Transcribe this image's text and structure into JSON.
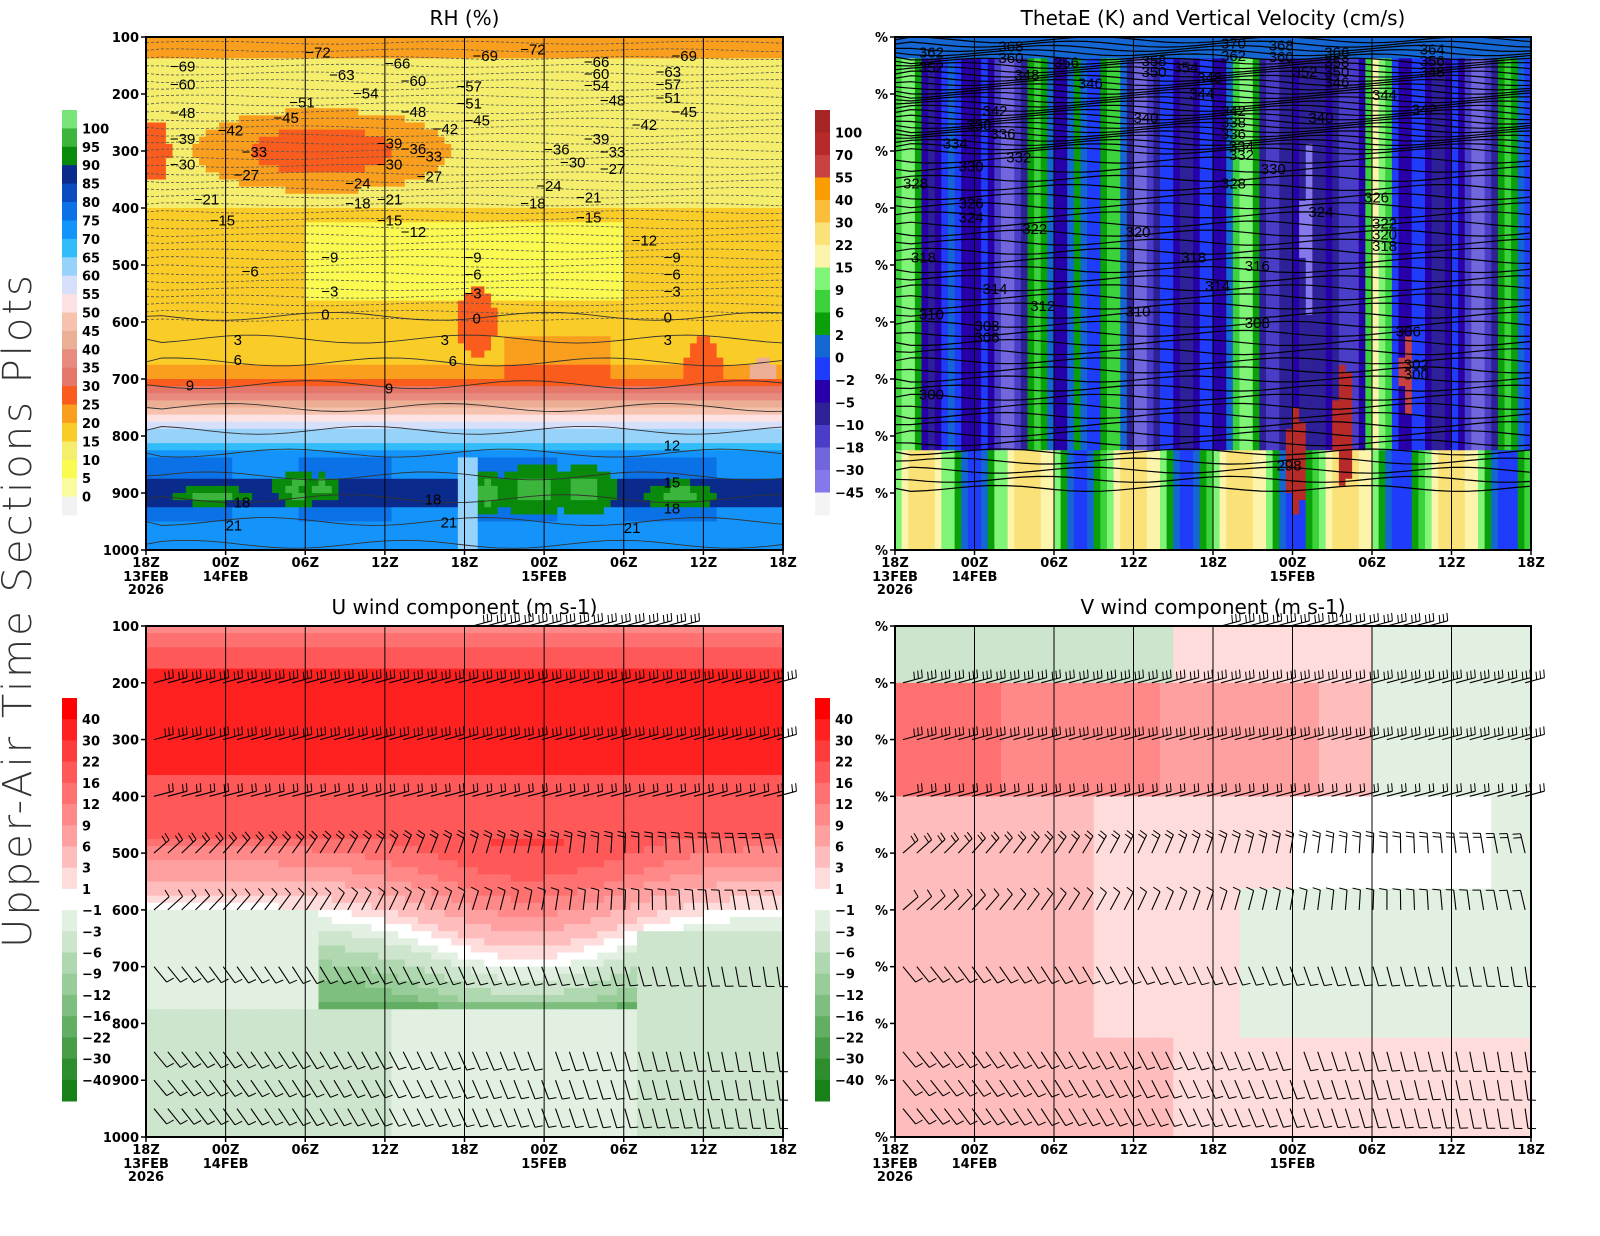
{
  "figure": {
    "side_title": "Upper-Air Time Sections Plots",
    "time_ticks": [
      "18Z",
      "00Z",
      "06Z",
      "12Z",
      "18Z",
      "00Z",
      "06Z",
      "12Z",
      "18Z"
    ],
    "date_labels": [
      {
        "tick_index": 0,
        "lines": [
          "13FEB",
          "2026"
        ]
      },
      {
        "tick_index": 1,
        "lines": [
          "14FEB"
        ]
      },
      {
        "tick_index": 5,
        "lines": [
          "15FEB"
        ]
      }
    ],
    "colors": {
      "grid": "#000000",
      "text": "#000000"
    }
  },
  "chart_data": [
    {
      "id": "rh",
      "type": "heatmap",
      "title": "RH (%)",
      "xlabel": "",
      "ylabel": "",
      "y_ticks": [
        "100",
        "200",
        "300",
        "400",
        "500",
        "600",
        "700",
        "800",
        "900",
        "1000"
      ],
      "ylim": [
        100,
        1000
      ],
      "colorbar": {
        "labels": [
          "100",
          "95",
          "90",
          "85",
          "80",
          "75",
          "70",
          "65",
          "60",
          "55",
          "50",
          "45",
          "40",
          "35",
          "30",
          "25",
          "20",
          "15",
          "10",
          "5",
          "0"
        ],
        "colors": [
          "#78e47a",
          "#3cb53c",
          "#0a8a0a",
          "#0a2a8c",
          "#0a4cbf",
          "#0a72e6",
          "#1494fa",
          "#32bcfa",
          "#96d2fa",
          "#d6e0fa",
          "#fce2e2",
          "#f6c2ae",
          "#ecae94",
          "#e88a7e",
          "#e4766a",
          "#fa5c1e",
          "#fa9e1e",
          "#facc28",
          "#f4ee6c",
          "#fafa50",
          "#fafa9e",
          "#f2f2f2"
        ]
      },
      "contour_labels": [
        {
          "text": "-69",
          "t": 0.3,
          "p": 150
        },
        {
          "text": "-60",
          "t": 0.3,
          "p": 182
        },
        {
          "text": "-48",
          "t": 0.3,
          "p": 232
        },
        {
          "text": "-39",
          "t": 0.3,
          "p": 277
        },
        {
          "text": "-30",
          "t": 0.3,
          "p": 322
        },
        {
          "text": "-21",
          "t": 0.6,
          "p": 383
        },
        {
          "text": "-15",
          "t": 0.8,
          "p": 420
        },
        {
          "text": "-42",
          "t": 0.9,
          "p": 262
        },
        {
          "text": "-33",
          "t": 1.2,
          "p": 300
        },
        {
          "text": "-27",
          "t": 1.1,
          "p": 340
        },
        {
          "text": "-72",
          "t": 2.0,
          "p": 125
        },
        {
          "text": "-63",
          "t": 2.3,
          "p": 165
        },
        {
          "text": "-54",
          "t": 2.6,
          "p": 197
        },
        {
          "text": "-51",
          "t": 1.8,
          "p": 213
        },
        {
          "text": "-45",
          "t": 1.6,
          "p": 240
        },
        {
          "text": "-36",
          "t": 3.2,
          "p": 295
        },
        {
          "text": "-24",
          "t": 2.5,
          "p": 355
        },
        {
          "text": "-18",
          "t": 2.5,
          "p": 390
        },
        {
          "text": "-9",
          "t": 2.2,
          "p": 485
        },
        {
          "text": "-6",
          "t": 1.2,
          "p": 510
        },
        {
          "text": "-3",
          "t": 2.2,
          "p": 545
        },
        {
          "text": "0",
          "t": 2.2,
          "p": 585
        },
        {
          "text": "3",
          "t": 1.1,
          "p": 630
        },
        {
          "text": "6",
          "t": 1.1,
          "p": 665
        },
        {
          "text": "9",
          "t": 0.5,
          "p": 710
        },
        {
          "text": "-66",
          "t": 3.0,
          "p": 145
        },
        {
          "text": "-60",
          "t": 3.2,
          "p": 175
        },
        {
          "text": "-48",
          "t": 3.2,
          "p": 230
        },
        {
          "text": "-42",
          "t": 3.6,
          "p": 260
        },
        {
          "text": "-39",
          "t": 2.9,
          "p": 285
        },
        {
          "text": "-33",
          "t": 3.4,
          "p": 308
        },
        {
          "text": "-30",
          "t": 2.9,
          "p": 322
        },
        {
          "text": "-27",
          "t": 3.4,
          "p": 343
        },
        {
          "text": "-21",
          "t": 2.9,
          "p": 383
        },
        {
          "text": "-15",
          "t": 2.9,
          "p": 420
        },
        {
          "text": "-12",
          "t": 3.2,
          "p": 440
        },
        {
          "text": "9",
          "t": 3.0,
          "p": 715
        },
        {
          "text": "-69",
          "t": 4.1,
          "p": 132
        },
        {
          "text": "-57",
          "t": 3.9,
          "p": 185
        },
        {
          "text": "-51",
          "t": 3.9,
          "p": 215
        },
        {
          "text": "-45",
          "t": 4.0,
          "p": 245
        },
        {
          "text": "-9",
          "t": 4.0,
          "p": 485
        },
        {
          "text": "-6",
          "t": 4.0,
          "p": 515
        },
        {
          "text": "-3",
          "t": 4.0,
          "p": 548
        },
        {
          "text": "0",
          "t": 4.1,
          "p": 592
        },
        {
          "text": "3",
          "t": 3.7,
          "p": 630
        },
        {
          "text": "6",
          "t": 3.8,
          "p": 667
        },
        {
          "text": "-72",
          "t": 4.7,
          "p": 120
        },
        {
          "text": "-36",
          "t": 5.0,
          "p": 296
        },
        {
          "text": "-30",
          "t": 5.2,
          "p": 318
        },
        {
          "text": "-24",
          "t": 4.9,
          "p": 360
        },
        {
          "text": "-18",
          "t": 4.7,
          "p": 390
        },
        {
          "text": "-66",
          "t": 5.5,
          "p": 142
        },
        {
          "text": "-60",
          "t": 5.5,
          "p": 163
        },
        {
          "text": "-54",
          "t": 5.5,
          "p": 183
        },
        {
          "text": "-48",
          "t": 5.7,
          "p": 210
        },
        {
          "text": "-39",
          "t": 5.5,
          "p": 277
        },
        {
          "text": "-33",
          "t": 5.7,
          "p": 300
        },
        {
          "text": "-27",
          "t": 5.7,
          "p": 330
        },
        {
          "text": "-21",
          "t": 5.4,
          "p": 380
        },
        {
          "text": "-15",
          "t": 5.4,
          "p": 415
        },
        {
          "text": "-12",
          "t": 6.1,
          "p": 455
        },
        {
          "text": "-42",
          "t": 6.1,
          "p": 253
        },
        {
          "text": "-69",
          "t": 6.6,
          "p": 132
        },
        {
          "text": "-63",
          "t": 6.4,
          "p": 160
        },
        {
          "text": "-57",
          "t": 6.4,
          "p": 182
        },
        {
          "text": "-51",
          "t": 6.4,
          "p": 205
        },
        {
          "text": "-45",
          "t": 6.6,
          "p": 230
        },
        {
          "text": "-9",
          "t": 6.5,
          "p": 485
        },
        {
          "text": "-6",
          "t": 6.5,
          "p": 515
        },
        {
          "text": "-3",
          "t": 6.5,
          "p": 545
        },
        {
          "text": "0",
          "t": 6.5,
          "p": 590
        },
        {
          "text": "3",
          "t": 6.5,
          "p": 630
        },
        {
          "text": "12",
          "t": 6.5,
          "p": 815
        },
        {
          "text": "15",
          "t": 6.5,
          "p": 880
        },
        {
          "text": "18",
          "t": 6.5,
          "p": 925
        },
        {
          "text": "21",
          "t": 6.0,
          "p": 960
        },
        {
          "text": "18",
          "t": 1.1,
          "p": 915
        },
        {
          "text": "21",
          "t": 1.0,
          "p": 955
        },
        {
          "text": "18",
          "t": 3.5,
          "p": 910
        },
        {
          "text": "21",
          "t": 3.7,
          "p": 950
        }
      ]
    },
    {
      "id": "thetae",
      "type": "heatmap",
      "title": "ThetaE (K) and Vertical Velocity (cm/s)",
      "xlabel": "",
      "ylabel": "",
      "y_ticks": [
        "%",
        "%",
        "%",
        "%",
        "%",
        "%",
        "%",
        "%",
        "%",
        "%"
      ],
      "ylim": [
        100,
        1000
      ],
      "colorbar": {
        "labels": [
          "100",
          "70",
          "55",
          "40",
          "30",
          "22",
          "15",
          "9",
          "6",
          "2",
          "0",
          "-2",
          "-5",
          "-10",
          "-18",
          "-30",
          "-45"
        ],
        "colors": [
          "#a52424",
          "#b82a2a",
          "#c84040",
          "#fa9e00",
          "#fabe3c",
          "#fae178",
          "#fcf4aa",
          "#80f476",
          "#3cd23c",
          "#0aa00a",
          "#1466d2",
          "#1e3cfa",
          "#2800aa",
          "#2e2096",
          "#4a3ec8",
          "#7266dc",
          "#8478ea",
          "#f4f4f4"
        ]
      },
      "contour_labels": [
        {
          "text": "362",
          "t": 0.3,
          "p": 125
        },
        {
          "text": "352",
          "t": 0.3,
          "p": 152
        },
        {
          "text": "368",
          "t": 1.3,
          "p": 115
        },
        {
          "text": "360",
          "t": 1.3,
          "p": 135
        },
        {
          "text": "356",
          "t": 2.0,
          "p": 143
        },
        {
          "text": "348",
          "t": 1.5,
          "p": 165
        },
        {
          "text": "346",
          "t": 2.3,
          "p": 180
        },
        {
          "text": "342",
          "t": 1.1,
          "p": 228
        },
        {
          "text": "338",
          "t": 0.9,
          "p": 253
        },
        {
          "text": "336",
          "t": 1.2,
          "p": 268
        },
        {
          "text": "334",
          "t": 0.6,
          "p": 285
        },
        {
          "text": "332",
          "t": 1.4,
          "p": 310
        },
        {
          "text": "330",
          "t": 0.8,
          "p": 325
        },
        {
          "text": "328",
          "t": 0.1,
          "p": 355
        },
        {
          "text": "326",
          "t": 0.8,
          "p": 390
        },
        {
          "text": "324",
          "t": 0.8,
          "p": 415
        },
        {
          "text": "322",
          "t": 1.6,
          "p": 435
        },
        {
          "text": "318",
          "t": 0.2,
          "p": 485
        },
        {
          "text": "314",
          "t": 1.1,
          "p": 540
        },
        {
          "text": "312",
          "t": 1.7,
          "p": 570
        },
        {
          "text": "310",
          "t": 0.3,
          "p": 585
        },
        {
          "text": "308",
          "t": 1.0,
          "p": 605
        },
        {
          "text": "306",
          "t": 1.0,
          "p": 625
        },
        {
          "text": "300",
          "t": 0.3,
          "p": 725
        },
        {
          "text": "358",
          "t": 3.1,
          "p": 140
        },
        {
          "text": "350",
          "t": 3.1,
          "p": 160
        },
        {
          "text": "354",
          "t": 3.5,
          "p": 152
        },
        {
          "text": "348",
          "t": 3.8,
          "p": 170
        },
        {
          "text": "344",
          "t": 3.7,
          "p": 198
        },
        {
          "text": "340",
          "t": 3.0,
          "p": 240
        },
        {
          "text": "342",
          "t": 4.1,
          "p": 228
        },
        {
          "text": "338",
          "t": 4.1,
          "p": 248
        },
        {
          "text": "336",
          "t": 4.1,
          "p": 268
        },
        {
          "text": "334",
          "t": 4.2,
          "p": 290
        },
        {
          "text": "332",
          "t": 4.2,
          "p": 305
        },
        {
          "text": "330",
          "t": 4.6,
          "p": 330
        },
        {
          "text": "328",
          "t": 4.1,
          "p": 355
        },
        {
          "text": "320",
          "t": 2.9,
          "p": 440
        },
        {
          "text": "318",
          "t": 3.6,
          "p": 485
        },
        {
          "text": "316",
          "t": 4.4,
          "p": 500
        },
        {
          "text": "314",
          "t": 3.9,
          "p": 535
        },
        {
          "text": "310",
          "t": 2.9,
          "p": 580
        },
        {
          "text": "308",
          "t": 4.4,
          "p": 600
        },
        {
          "text": "370",
          "t": 4.1,
          "p": 110
        },
        {
          "text": "362",
          "t": 4.1,
          "p": 132
        },
        {
          "text": "368",
          "t": 4.7,
          "p": 113
        },
        {
          "text": "360",
          "t": 4.7,
          "p": 133
        },
        {
          "text": "352",
          "t": 5.0,
          "p": 160
        },
        {
          "text": "366",
          "t": 5.4,
          "p": 125
        },
        {
          "text": "358",
          "t": 5.4,
          "p": 142
        },
        {
          "text": "350",
          "t": 5.4,
          "p": 160
        },
        {
          "text": "346",
          "t": 5.4,
          "p": 178
        },
        {
          "text": "344",
          "t": 6.0,
          "p": 200
        },
        {
          "text": "340",
          "t": 5.2,
          "p": 240
        },
        {
          "text": "326",
          "t": 5.9,
          "p": 380
        },
        {
          "text": "324",
          "t": 5.2,
          "p": 405
        },
        {
          "text": "322",
          "t": 6.0,
          "p": 425
        },
        {
          "text": "320",
          "t": 6.0,
          "p": 445
        },
        {
          "text": "318",
          "t": 6.0,
          "p": 465
        },
        {
          "text": "364",
          "t": 6.6,
          "p": 120
        },
        {
          "text": "356",
          "t": 6.6,
          "p": 140
        },
        {
          "text": "348",
          "t": 6.6,
          "p": 160
        },
        {
          "text": "342",
          "t": 6.5,
          "p": 225
        },
        {
          "text": "306",
          "t": 6.3,
          "p": 615
        },
        {
          "text": "302",
          "t": 6.4,
          "p": 673
        },
        {
          "text": "300",
          "t": 6.4,
          "p": 690
        },
        {
          "text": "298",
          "t": 4.8,
          "p": 850
        }
      ]
    },
    {
      "id": "u_wind",
      "type": "heatmap",
      "title": "U wind component (m s-1)",
      "xlabel": "",
      "ylabel": "",
      "y_ticks": [
        "100",
        "200",
        "300",
        "400",
        "500",
        "600",
        "700",
        "800",
        "900",
        "1000"
      ],
      "ylim": [
        100,
        1000
      ],
      "colorbar": {
        "labels": [
          "40",
          "30",
          "22",
          "16",
          "12",
          "9",
          "6",
          "3",
          "1",
          "-1",
          "-3",
          "-6",
          "-9",
          "-12",
          "-16",
          "-22",
          "-30",
          "-40"
        ],
        "colors": [
          "#ff0000",
          "#ff2020",
          "#ff3c3c",
          "#ff5858",
          "#ff7070",
          "#ff8888",
          "#ffa0a0",
          "#ffbcbc",
          "#ffdcdc",
          "#ffffff",
          "#e2f0e2",
          "#cde4cd",
          "#b0d8b0",
          "#98cc98",
          "#7ebe7e",
          "#62ae62",
          "#489e48",
          "#2e8e2e",
          "#188018"
        ]
      },
      "contour_labels": []
    },
    {
      "id": "v_wind",
      "type": "heatmap",
      "title": "V wind component (m s-1)",
      "xlabel": "",
      "ylabel": "",
      "y_ticks": [
        "%",
        "%",
        "%",
        "%",
        "%",
        "%",
        "%",
        "%",
        "%",
        "%"
      ],
      "ylim": [
        100,
        1000
      ],
      "colorbar": {
        "labels": [
          "40",
          "30",
          "22",
          "16",
          "12",
          "9",
          "6",
          "3",
          "1",
          "-1",
          "-3",
          "-6",
          "-9",
          "-12",
          "-16",
          "-22",
          "-30",
          "-40"
        ],
        "colors": [
          "#ff0000",
          "#ff2020",
          "#ff3c3c",
          "#ff5858",
          "#ff7070",
          "#ff8888",
          "#ffa0a0",
          "#ffbcbc",
          "#ffdcdc",
          "#ffffff",
          "#e2f0e2",
          "#cde4cd",
          "#b0d8b0",
          "#98cc98",
          "#7ebe7e",
          "#62ae62",
          "#489e48",
          "#2e8e2e",
          "#188018"
        ]
      },
      "contour_labels": []
    }
  ]
}
